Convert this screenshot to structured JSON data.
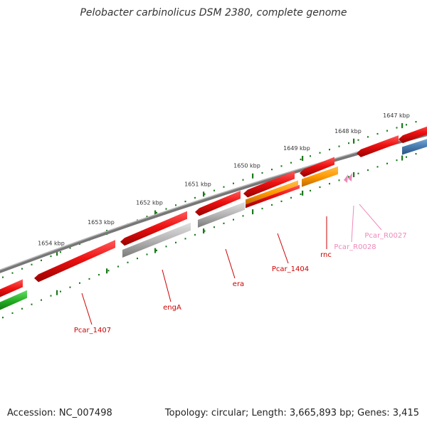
{
  "title": "Pelobacter carbinolicus DSM 2380, complete genome",
  "ticks": [
    {
      "label": "1647 kbp"
    },
    {
      "label": "1648 kbp"
    },
    {
      "label": "1649 kbp"
    },
    {
      "label": "1650 kbp"
    },
    {
      "label": "1651 kbp"
    },
    {
      "label": "1652 kbp"
    },
    {
      "label": "1653 kbp"
    },
    {
      "label": "1654 kbp"
    }
  ],
  "genes": [
    {
      "name": "Pcar_1407",
      "color": "#cc0000"
    },
    {
      "name": "engA",
      "color": "#cc0000"
    },
    {
      "name": "era",
      "color": "#cc0000"
    },
    {
      "name": "Pcar_1404",
      "color": "#cc0000"
    },
    {
      "name": "rnc",
      "color": "#cc0000"
    },
    {
      "name": "Pcar_R0028",
      "color": "#ee88bb"
    },
    {
      "name": "Pcar_R0027",
      "color": "#ee88bb"
    }
  ],
  "colors": {
    "cds": "#ee1111",
    "backbone": "#888888",
    "ticks": "#1a7a1a",
    "cog_gray": "#b4b4b4",
    "cog_orange": "#ff9900",
    "cog_green": "#22aa22",
    "cog_blue": "#4a7fb5",
    "rna": "#ee88bb"
  },
  "footer": {
    "accession": "Accession: NC_007498",
    "summary": "Topology: circular; Length: 3,665,893 bp; Genes: 3,415"
  }
}
